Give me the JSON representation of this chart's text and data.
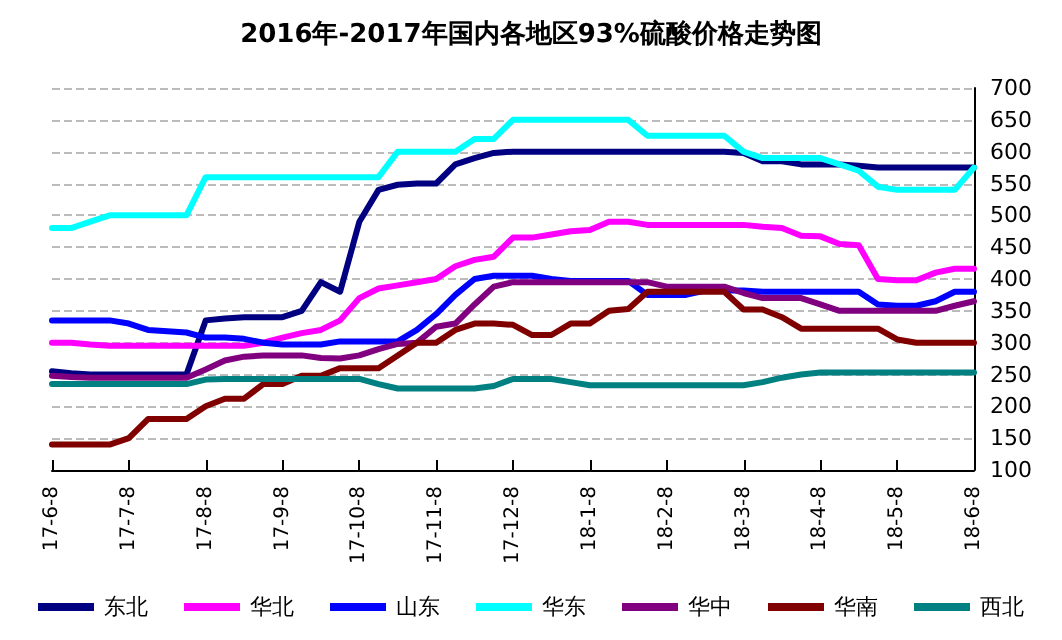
{
  "chart_data": {
    "type": "line",
    "title": "2016年-2017年国内各地区93%硫酸价格走势图",
    "categories": [
      "17-6-8",
      null,
      null,
      null,
      "17-7-8",
      null,
      null,
      null,
      "17-8-8",
      null,
      null,
      null,
      "17-9-8",
      null,
      null,
      null,
      "17-10-8",
      null,
      null,
      null,
      "17-11-8",
      null,
      null,
      null,
      "17-12-8",
      null,
      null,
      null,
      "18-1-8",
      null,
      null,
      null,
      "18-2-8",
      null,
      null,
      null,
      "18-3-8",
      null,
      null,
      null,
      "18-4-8",
      null,
      null,
      null,
      "18-5-8",
      null,
      null,
      null,
      "18-6-8"
    ],
    "series": [
      {
        "name": "东北",
        "color": "#000080",
        "values": [
          255,
          252,
          250,
          250,
          250,
          250,
          250,
          250,
          335,
          338,
          340,
          340,
          340,
          350,
          395,
          380,
          490,
          540,
          548,
          550,
          550,
          580,
          590,
          598,
          600,
          600,
          600,
          600,
          600,
          600,
          600,
          600,
          600,
          600,
          600,
          600,
          598,
          585,
          585,
          580,
          580,
          580,
          578,
          575,
          575,
          575,
          575,
          575,
          575
        ]
      },
      {
        "name": "华北",
        "color": "#ff00ff",
        "values": [
          300,
          300,
          297,
          295,
          295,
          295,
          295,
          295,
          295,
          295,
          295,
          300,
          308,
          315,
          320,
          335,
          370,
          385,
          390,
          395,
          400,
          420,
          430,
          435,
          465,
          465,
          470,
          475,
          477,
          490,
          490,
          485,
          485,
          485,
          485,
          485,
          485,
          482,
          480,
          468,
          467,
          455,
          453,
          400,
          398,
          398,
          410,
          416,
          416
        ]
      },
      {
        "name": "山东",
        "color": "#0000ff",
        "values": [
          335,
          335,
          335,
          335,
          330,
          320,
          318,
          316,
          308,
          308,
          306,
          300,
          297,
          297,
          297,
          302,
          302,
          302,
          302,
          320,
          345,
          375,
          400,
          405,
          405,
          405,
          400,
          397,
          397,
          397,
          397,
          375,
          375,
          375,
          382,
          382,
          382,
          380,
          380,
          380,
          380,
          380,
          380,
          360,
          358,
          358,
          365,
          380,
          380
        ]
      },
      {
        "name": "华东",
        "color": "#00ffff",
        "values": [
          480,
          480,
          490,
          500,
          500,
          500,
          500,
          500,
          560,
          560,
          560,
          560,
          560,
          560,
          560,
          560,
          560,
          560,
          600,
          600,
          600,
          600,
          620,
          620,
          650,
          650,
          650,
          650,
          650,
          650,
          650,
          625,
          625,
          625,
          625,
          625,
          600,
          590,
          590,
          590,
          590,
          580,
          570,
          545,
          540,
          540,
          540,
          540,
          575
        ]
      },
      {
        "name": "华中",
        "color": "#800080",
        "values": [
          248,
          246,
          245,
          245,
          245,
          245,
          245,
          245,
          258,
          272,
          278,
          280,
          280,
          280,
          276,
          275,
          280,
          290,
          298,
          300,
          325,
          330,
          360,
          388,
          395,
          395,
          395,
          395,
          395,
          395,
          395,
          395,
          388,
          388,
          388,
          388,
          378,
          370,
          370,
          370,
          360,
          350,
          350,
          350,
          350,
          350,
          350,
          358,
          365
        ]
      },
      {
        "name": "华南",
        "color": "#800000",
        "values": [
          140,
          140,
          140,
          140,
          150,
          180,
          180,
          180,
          200,
          212,
          212,
          235,
          235,
          248,
          248,
          260,
          260,
          260,
          280,
          300,
          300,
          320,
          330,
          330,
          328,
          312,
          312,
          330,
          330,
          350,
          353,
          380,
          380,
          380,
          380,
          380,
          352,
          352,
          340,
          322,
          322,
          322,
          322,
          322,
          305,
          300,
          300,
          300,
          300
        ]
      },
      {
        "name": "西北",
        "color": "#008080",
        "values": [
          235,
          235,
          235,
          235,
          235,
          235,
          235,
          235,
          242,
          243,
          243,
          243,
          243,
          243,
          243,
          243,
          243,
          235,
          228,
          228,
          228,
          228,
          228,
          232,
          243,
          243,
          243,
          238,
          233,
          233,
          233,
          233,
          233,
          233,
          233,
          233,
          233,
          238,
          245,
          250,
          253,
          253,
          253,
          253,
          253,
          253,
          253,
          253,
          253
        ]
      }
    ],
    "ylim": [
      100,
      700
    ],
    "yticks": [
      100,
      150,
      200,
      250,
      300,
      350,
      400,
      450,
      500,
      550,
      600,
      650,
      700
    ],
    "grid": "y",
    "legend": "bottom",
    "marker": "none",
    "line_style": "solid"
  }
}
